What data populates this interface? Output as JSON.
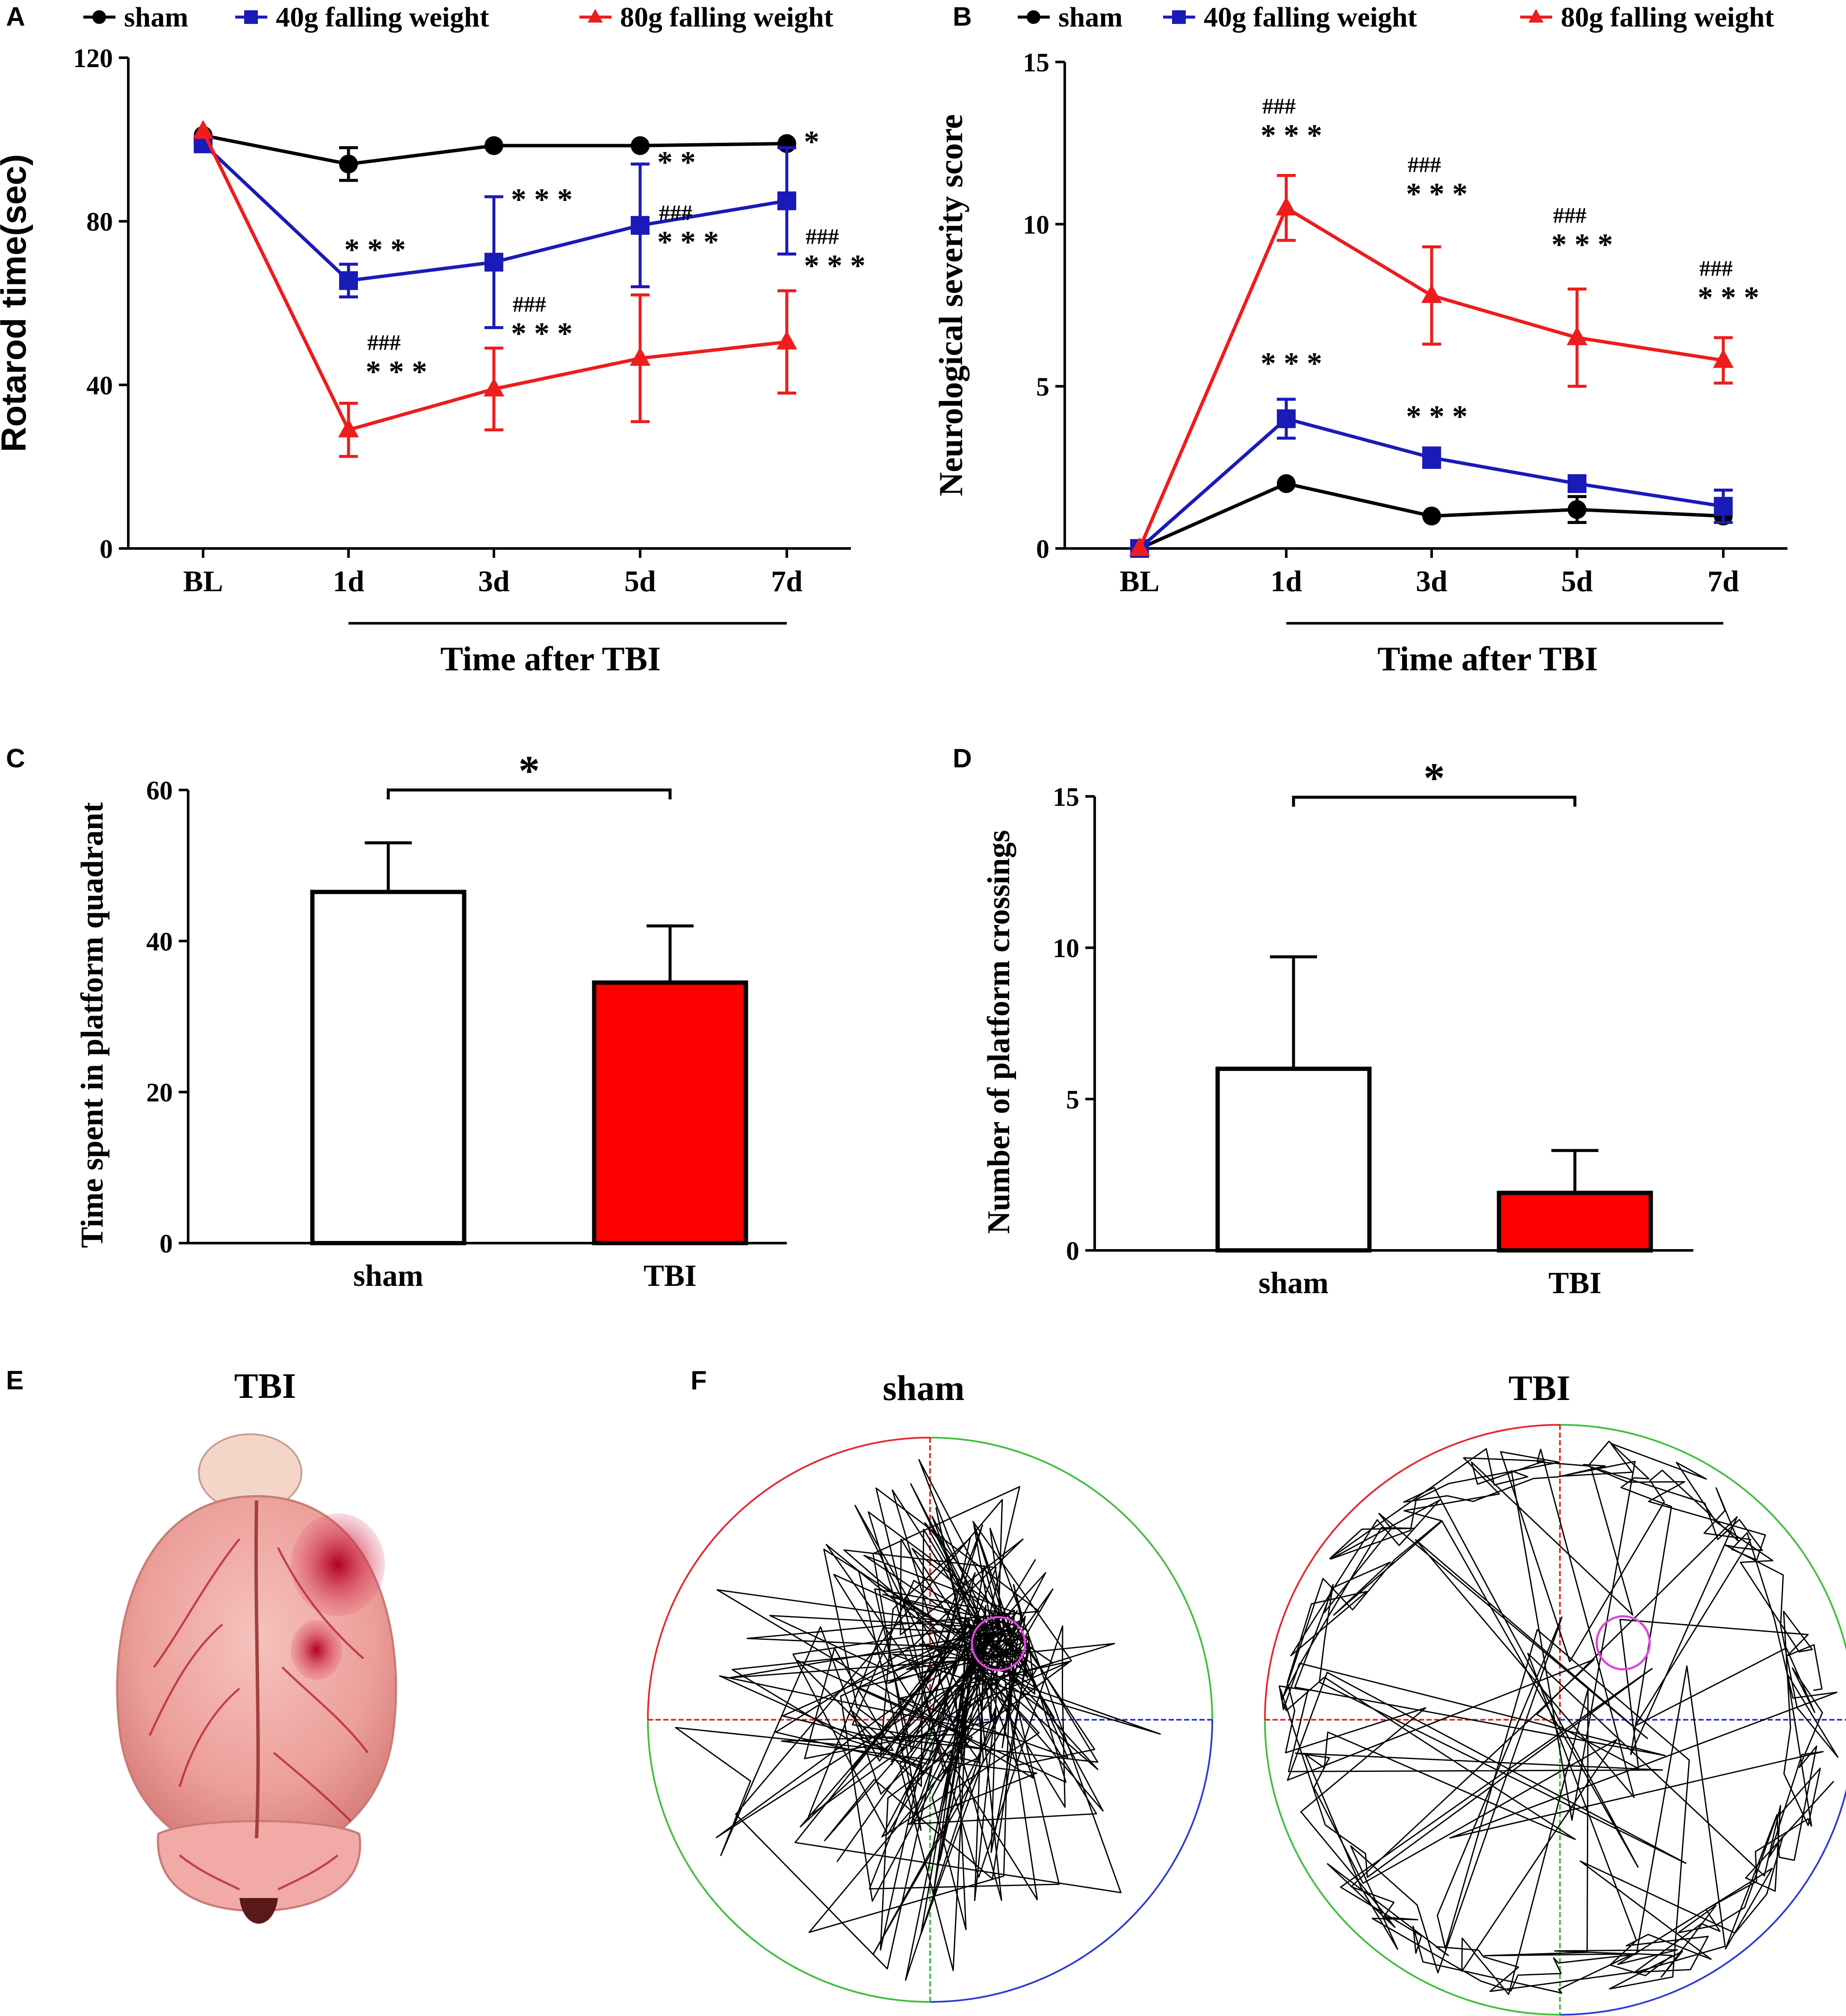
{
  "colors": {
    "sham": "#000000",
    "w40": "#1a1ab8",
    "w80": "#ee1c1c",
    "bar_tbi": "#ff0000",
    "quad_red": "#e8262b",
    "quad_green": "#3cbf3c",
    "quad_blue": "#2a3ad8",
    "platform": "#e040e0",
    "brain_base": "#f0a3a0",
    "brain_blood": "#c8102e"
  },
  "panels": {
    "A": {
      "letter": "A"
    },
    "B": {
      "letter": "B"
    },
    "C": {
      "letter": "C"
    },
    "D": {
      "letter": "D"
    },
    "E": {
      "letter": "E",
      "title": "TBI"
    },
    "F": {
      "letter": "F",
      "left_title": "sham",
      "right_title": "TBI"
    }
  },
  "chart_data": [
    {
      "id": "A",
      "type": "line",
      "xlabel": "Time after TBI",
      "ylabel": "Rotarod time(sec)",
      "categories": [
        "BL",
        "1d",
        "3d",
        "5d",
        "7d"
      ],
      "ylim": [
        0,
        120
      ],
      "yticks": [
        0,
        40,
        80,
        120
      ],
      "legend": [
        "sham",
        "40g falling weight",
        "80g falling weight"
      ],
      "series": [
        {
          "name": "sham",
          "values": [
            101,
            94,
            98.5,
            98.5,
            99
          ],
          "errors": [
            0,
            4,
            0,
            0,
            0
          ]
        },
        {
          "name": "40g falling weight",
          "values": [
            99,
            65.5,
            70,
            79,
            85
          ],
          "errors": [
            2,
            4,
            16,
            15,
            13
          ]
        },
        {
          "name": "80g falling weight",
          "values": [
            102,
            29,
            39,
            46.5,
            50.5
          ],
          "errors": [
            0,
            6.5,
            10,
            15.5,
            12.5
          ]
        }
      ],
      "annotations": [
        {
          "series": "40g falling weight",
          "idx": 1,
          "text": "***"
        },
        {
          "series": "40g falling weight",
          "idx": 2,
          "text": "***"
        },
        {
          "series": "40g falling weight",
          "idx": 3,
          "text": "**"
        },
        {
          "series": "40g falling weight",
          "idx": 4,
          "text": "*"
        },
        {
          "series": "80g falling weight",
          "idx": 1,
          "text": "***",
          "hash": "###"
        },
        {
          "series": "80g falling weight",
          "idx": 2,
          "text": "***",
          "hash": "###"
        },
        {
          "series": "80g falling weight",
          "idx": 3,
          "text": "***",
          "hash": "###"
        },
        {
          "series": "80g falling weight",
          "idx": 4,
          "text": "***",
          "hash": "###"
        }
      ]
    },
    {
      "id": "B",
      "type": "line",
      "xlabel": "Time after TBI",
      "ylabel": "Neurological severity score",
      "categories": [
        "BL",
        "1d",
        "3d",
        "5d",
        "7d"
      ],
      "ylim": [
        0,
        15
      ],
      "yticks": [
        0,
        5,
        10,
        15
      ],
      "legend": [
        "sham",
        "40g falling weight",
        "80g falling weight"
      ],
      "series": [
        {
          "name": "sham",
          "values": [
            0,
            2,
            1,
            1.2,
            1
          ],
          "errors": [
            0,
            0,
            0,
            0.4,
            0
          ]
        },
        {
          "name": "40g falling weight",
          "values": [
            0,
            4,
            2.8,
            2,
            1.3
          ],
          "errors": [
            0,
            0.6,
            0.3,
            0.2,
            0.5
          ]
        },
        {
          "name": "80g falling weight",
          "values": [
            0,
            10.5,
            7.8,
            6.5,
            5.8
          ],
          "errors": [
            0,
            1,
            1.5,
            1.5,
            0.7
          ]
        }
      ],
      "annotations": [
        {
          "series": "40g falling weight",
          "idx": 1,
          "text": "***"
        },
        {
          "series": "40g falling weight",
          "idx": 2,
          "text": "***"
        },
        {
          "series": "80g falling weight",
          "idx": 1,
          "text": "***",
          "hash": "###"
        },
        {
          "series": "80g falling weight",
          "idx": 2,
          "text": "***",
          "hash": "###"
        },
        {
          "series": "80g falling weight",
          "idx": 3,
          "text": "***",
          "hash": "###"
        },
        {
          "series": "80g falling weight",
          "idx": 4,
          "text": "***",
          "hash": "###"
        }
      ]
    },
    {
      "id": "C",
      "type": "bar",
      "ylabel": "Time spent in platform quadrant",
      "categories": [
        "sham",
        "TBI"
      ],
      "values": [
        46.5,
        34.5
      ],
      "errors": [
        6.5,
        7.5
      ],
      "ylim": [
        0,
        60
      ],
      "yticks": [
        0,
        20,
        40,
        60
      ],
      "significance": "*"
    },
    {
      "id": "D",
      "type": "bar",
      "ylabel": "Number of platform crossings",
      "categories": [
        "sham",
        "TBI"
      ],
      "values": [
        6,
        1.9
      ],
      "errors": [
        3.7,
        1.4
      ],
      "ylim": [
        0,
        15
      ],
      "yticks": [
        0,
        5,
        10,
        15
      ],
      "significance": "*"
    }
  ]
}
